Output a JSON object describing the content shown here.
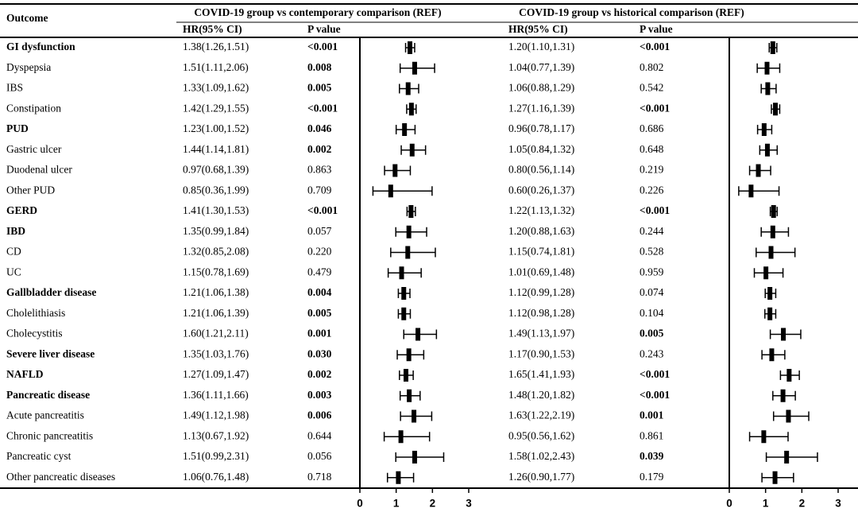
{
  "chart_data": {
    "type": "forest",
    "outcome_header": "Outcome",
    "xlim": [
      0,
      3
    ],
    "xticks": [
      0,
      1,
      2,
      3
    ],
    "outcomes": [
      {
        "name": "GI dysfunction",
        "bold": true
      },
      {
        "name": "Dyspepsia",
        "bold": false
      },
      {
        "name": "IBS",
        "bold": false
      },
      {
        "name": "Constipation",
        "bold": false
      },
      {
        "name": "PUD",
        "bold": true
      },
      {
        "name": "Gastric ulcer",
        "bold": false
      },
      {
        "name": "Duodenal ulcer",
        "bold": false
      },
      {
        "name": "Other PUD",
        "bold": false
      },
      {
        "name": "GERD",
        "bold": true
      },
      {
        "name": "IBD",
        "bold": true
      },
      {
        "name": "CD",
        "bold": false
      },
      {
        "name": "UC",
        "bold": false
      },
      {
        "name": "Gallbladder disease",
        "bold": true
      },
      {
        "name": "Cholelithiasis",
        "bold": false
      },
      {
        "name": "Cholecystitis",
        "bold": false
      },
      {
        "name": "Severe liver disease",
        "bold": true
      },
      {
        "name": "NAFLD",
        "bold": true
      },
      {
        "name": "Pancreatic disease",
        "bold": true
      },
      {
        "name": "Acute pancreatitis",
        "bold": false
      },
      {
        "name": "Chronic pancreatitis",
        "bold": false
      },
      {
        "name": "Pancreatic cyst",
        "bold": false
      },
      {
        "name": "Other pancreatic diseases",
        "bold": false
      }
    ],
    "comparisons": [
      {
        "title": "COVID-19 group vs contemporary comparison (REF)",
        "hr_header": "HR(95% CI)",
        "p_header": "P value",
        "color": "#000000",
        "rows": [
          {
            "hr_ci": "1.38(1.26,1.51)",
            "p": "<0.001",
            "p_bold": true,
            "hr": 1.38,
            "lo": 1.26,
            "hi": 1.51
          },
          {
            "hr_ci": "1.51(1.11,2.06)",
            "p": "0.008",
            "p_bold": true,
            "hr": 1.51,
            "lo": 1.11,
            "hi": 2.06
          },
          {
            "hr_ci": "1.33(1.09,1.62)",
            "p": "0.005",
            "p_bold": true,
            "hr": 1.33,
            "lo": 1.09,
            "hi": 1.62
          },
          {
            "hr_ci": "1.42(1.29,1.55)",
            "p": "<0.001",
            "p_bold": true,
            "hr": 1.42,
            "lo": 1.29,
            "hi": 1.55
          },
          {
            "hr_ci": "1.23(1.00,1.52)",
            "p": "0.046",
            "p_bold": true,
            "hr": 1.23,
            "lo": 1.0,
            "hi": 1.52
          },
          {
            "hr_ci": "1.44(1.14,1.81)",
            "p": "0.002",
            "p_bold": true,
            "hr": 1.44,
            "lo": 1.14,
            "hi": 1.81
          },
          {
            "hr_ci": "0.97(0.68,1.39)",
            "p": "0.863",
            "p_bold": false,
            "hr": 0.97,
            "lo": 0.68,
            "hi": 1.39
          },
          {
            "hr_ci": "0.85(0.36,1.99)",
            "p": "0.709",
            "p_bold": false,
            "hr": 0.85,
            "lo": 0.36,
            "hi": 1.99
          },
          {
            "hr_ci": "1.41(1.30,1.53)",
            "p": "<0.001",
            "p_bold": true,
            "hr": 1.41,
            "lo": 1.3,
            "hi": 1.53
          },
          {
            "hr_ci": "1.35(0.99,1.84)",
            "p": "0.057",
            "p_bold": false,
            "hr": 1.35,
            "lo": 0.99,
            "hi": 1.84
          },
          {
            "hr_ci": "1.32(0.85,2.08)",
            "p": "0.220",
            "p_bold": false,
            "hr": 1.32,
            "lo": 0.85,
            "hi": 2.08
          },
          {
            "hr_ci": "1.15(0.78,1.69)",
            "p": "0.479",
            "p_bold": false,
            "hr": 1.15,
            "lo": 0.78,
            "hi": 1.69
          },
          {
            "hr_ci": "1.21(1.06,1.38)",
            "p": "0.004",
            "p_bold": true,
            "hr": 1.21,
            "lo": 1.06,
            "hi": 1.38
          },
          {
            "hr_ci": "1.21(1.06,1.39)",
            "p": "0.005",
            "p_bold": true,
            "hr": 1.21,
            "lo": 1.06,
            "hi": 1.39
          },
          {
            "hr_ci": "1.60(1.21,2.11)",
            "p": "0.001",
            "p_bold": true,
            "hr": 1.6,
            "lo": 1.21,
            "hi": 2.11
          },
          {
            "hr_ci": "1.35(1.03,1.76)",
            "p": "0.030",
            "p_bold": true,
            "hr": 1.35,
            "lo": 1.03,
            "hi": 1.76
          },
          {
            "hr_ci": "1.27(1.09,1.47)",
            "p": "0.002",
            "p_bold": true,
            "hr": 1.27,
            "lo": 1.09,
            "hi": 1.47
          },
          {
            "hr_ci": "1.36(1.11,1.66)",
            "p": "0.003",
            "p_bold": true,
            "hr": 1.36,
            "lo": 1.11,
            "hi": 1.66
          },
          {
            "hr_ci": "1.49(1.12,1.98)",
            "p": "0.006",
            "p_bold": true,
            "hr": 1.49,
            "lo": 1.12,
            "hi": 1.98
          },
          {
            "hr_ci": "1.13(0.67,1.92)",
            "p": "0.644",
            "p_bold": false,
            "hr": 1.13,
            "lo": 0.67,
            "hi": 1.92
          },
          {
            "hr_ci": "1.51(0.99,2.31)",
            "p": "0.056",
            "p_bold": false,
            "hr": 1.51,
            "lo": 0.99,
            "hi": 2.31
          },
          {
            "hr_ci": "1.06(0.76,1.48)",
            "p": "0.718",
            "p_bold": false,
            "hr": 1.06,
            "lo": 0.76,
            "hi": 1.48
          }
        ]
      },
      {
        "title": "COVID-19 group vs historical comparison (REF)",
        "hr_header": "HR(95% CI)",
        "p_header": "P value",
        "color": "#000000",
        "rows": [
          {
            "hr_ci": "1.20(1.10,1.31)",
            "p": "<0.001",
            "p_bold": true,
            "hr": 1.2,
            "lo": 1.1,
            "hi": 1.31
          },
          {
            "hr_ci": "1.04(0.77,1.39)",
            "p": "0.802",
            "p_bold": false,
            "hr": 1.04,
            "lo": 0.77,
            "hi": 1.39
          },
          {
            "hr_ci": "1.06(0.88,1.29)",
            "p": "0.542",
            "p_bold": false,
            "hr": 1.06,
            "lo": 0.88,
            "hi": 1.29
          },
          {
            "hr_ci": "1.27(1.16,1.39)",
            "p": "<0.001",
            "p_bold": true,
            "hr": 1.27,
            "lo": 1.16,
            "hi": 1.39
          },
          {
            "hr_ci": "0.96(0.78,1.17)",
            "p": "0.686",
            "p_bold": false,
            "hr": 0.96,
            "lo": 0.78,
            "hi": 1.17
          },
          {
            "hr_ci": "1.05(0.84,1.32)",
            "p": "0.648",
            "p_bold": false,
            "hr": 1.05,
            "lo": 0.84,
            "hi": 1.32
          },
          {
            "hr_ci": "0.80(0.56,1.14)",
            "p": "0.219",
            "p_bold": false,
            "hr": 0.8,
            "lo": 0.56,
            "hi": 1.14
          },
          {
            "hr_ci": "0.60(0.26,1.37)",
            "p": "0.226",
            "p_bold": false,
            "hr": 0.6,
            "lo": 0.26,
            "hi": 1.37
          },
          {
            "hr_ci": "1.22(1.13,1.32)",
            "p": "<0.001",
            "p_bold": true,
            "hr": 1.22,
            "lo": 1.13,
            "hi": 1.32
          },
          {
            "hr_ci": "1.20(0.88,1.63)",
            "p": "0.244",
            "p_bold": false,
            "hr": 1.2,
            "lo": 0.88,
            "hi": 1.63
          },
          {
            "hr_ci": "1.15(0.74,1.81)",
            "p": "0.528",
            "p_bold": false,
            "hr": 1.15,
            "lo": 0.74,
            "hi": 1.81
          },
          {
            "hr_ci": "1.01(0.69,1.48)",
            "p": "0.959",
            "p_bold": false,
            "hr": 1.01,
            "lo": 0.69,
            "hi": 1.48
          },
          {
            "hr_ci": "1.12(0.99,1.28)",
            "p": "0.074",
            "p_bold": false,
            "hr": 1.12,
            "lo": 0.99,
            "hi": 1.28
          },
          {
            "hr_ci": "1.12(0.98,1.28)",
            "p": "0.104",
            "p_bold": false,
            "hr": 1.12,
            "lo": 0.98,
            "hi": 1.28
          },
          {
            "hr_ci": "1.49(1.13,1.97)",
            "p": "0.005",
            "p_bold": true,
            "hr": 1.49,
            "lo": 1.13,
            "hi": 1.97
          },
          {
            "hr_ci": "1.17(0.90,1.53)",
            "p": "0.243",
            "p_bold": false,
            "hr": 1.17,
            "lo": 0.9,
            "hi": 1.53
          },
          {
            "hr_ci": "1.65(1.41,1.93)",
            "p": "<0.001",
            "p_bold": true,
            "hr": 1.65,
            "lo": 1.41,
            "hi": 1.93
          },
          {
            "hr_ci": "1.48(1.20,1.82)",
            "p": "<0.001",
            "p_bold": true,
            "hr": 1.48,
            "lo": 1.2,
            "hi": 1.82
          },
          {
            "hr_ci": "1.63(1.22,2.19)",
            "p": "0.001",
            "p_bold": true,
            "hr": 1.63,
            "lo": 1.22,
            "hi": 2.19
          },
          {
            "hr_ci": "0.95(0.56,1.62)",
            "p": "0.861",
            "p_bold": false,
            "hr": 0.95,
            "lo": 0.56,
            "hi": 1.62
          },
          {
            "hr_ci": "1.58(1.02,2.43)",
            "p": "0.039",
            "p_bold": true,
            "hr": 1.58,
            "lo": 1.02,
            "hi": 2.43
          },
          {
            "hr_ci": "1.26(0.90,1.77)",
            "p": "0.179",
            "p_bold": false,
            "hr": 1.26,
            "lo": 0.9,
            "hi": 1.77
          }
        ]
      }
    ]
  }
}
